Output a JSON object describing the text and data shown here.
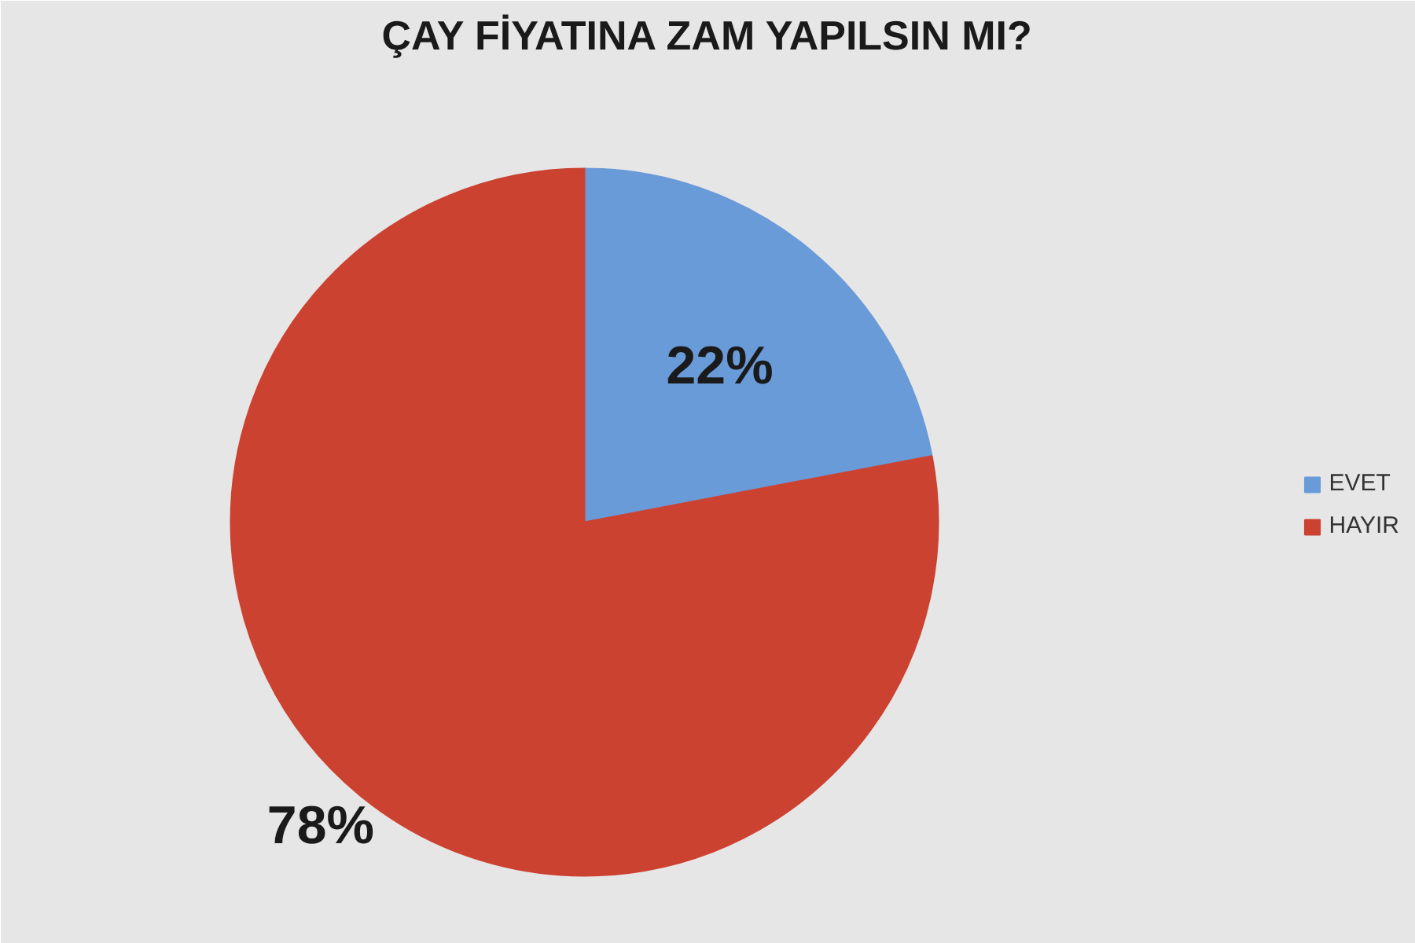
{
  "chart_data": {
    "type": "pie",
    "title": "ÇAY FİYATINA ZAM YAPILSIN MI?",
    "categories": [
      "EVET",
      "HAYIR"
    ],
    "values": [
      22,
      78
    ],
    "colors": [
      "#6a9bd9",
      "#cc4231"
    ],
    "value_labels": [
      "22%",
      "78%"
    ],
    "legend": "right"
  }
}
